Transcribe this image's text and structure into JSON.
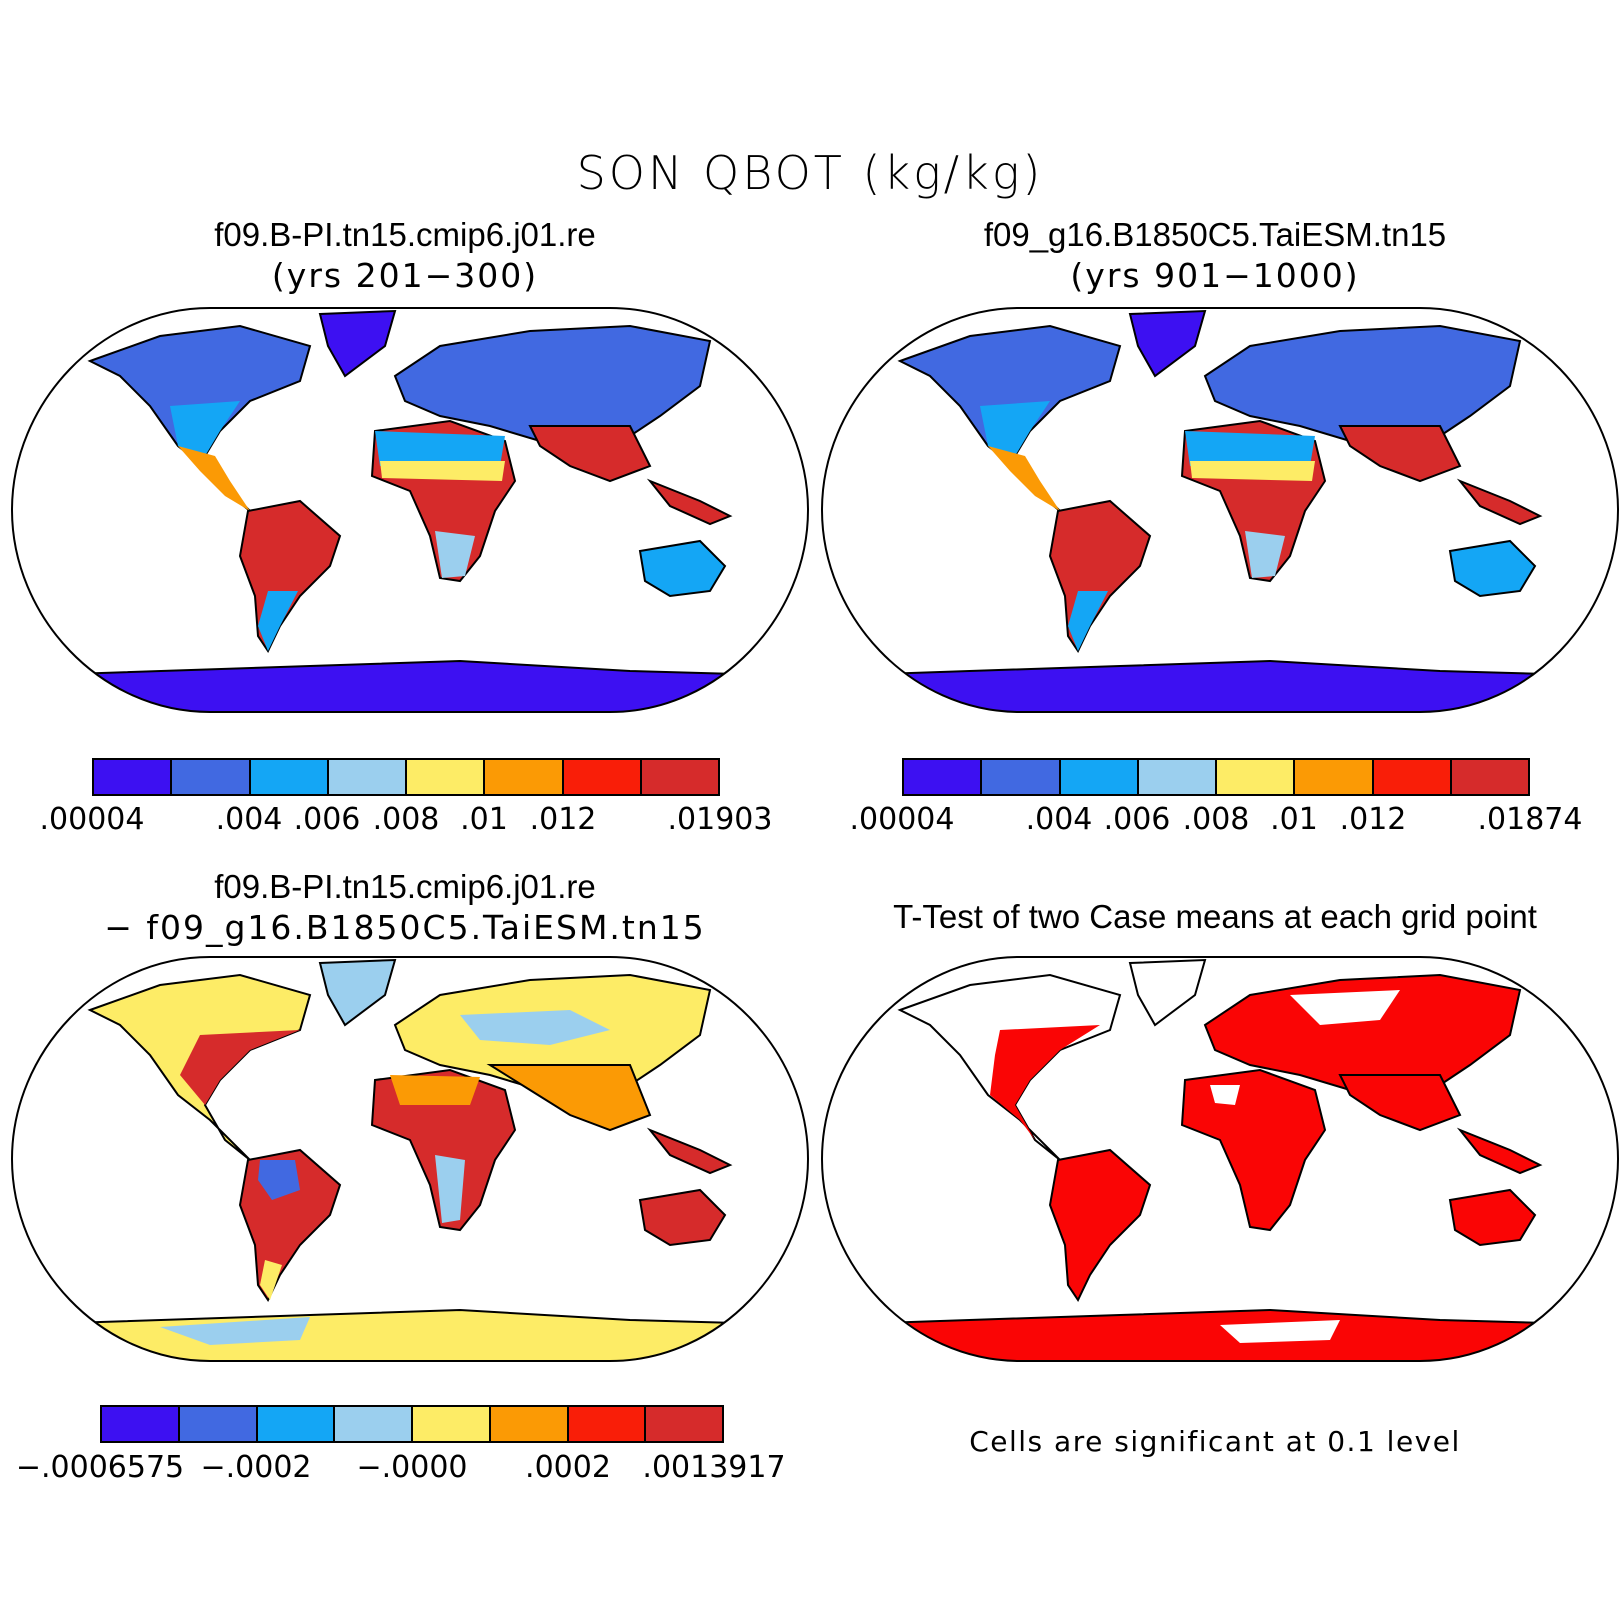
{
  "title": "SON QBOT (kg/kg)",
  "colors": {
    "c1": "#3d10f2",
    "c2": "#4169e1",
    "c3": "#14a6f5",
    "c4": "#9bcfee",
    "c5": "#fdec66",
    "c6": "#fb9a05",
    "c7": "#f91e08",
    "c8": "#d62b2b",
    "sig": "#fa0505"
  },
  "panels": {
    "top_left": {
      "title": "f09.B-PI.tn15.cmip6.j01.re",
      "subtitle": "(yrs 201−300)"
    },
    "top_right": {
      "title": "f09_g16.B1850C5.TaiESM.tn15",
      "subtitle": "(yrs 901−1000)"
    },
    "bottom_left": {
      "title": "f09.B-PI.tn15.cmip6.j01.re",
      "subtitle": "− f09_g16.B1850C5.TaiESM.tn15"
    },
    "bottom_right": {
      "title": "T-Test of two Case means at each grid point",
      "note": "Cells are significant at 0.1 level"
    }
  },
  "legends": {
    "top_left": {
      "ticks": [
        ".00004",
        ".004",
        ".006",
        ".008",
        ".01",
        ".012",
        ".01903"
      ]
    },
    "top_right": {
      "ticks": [
        ".00004",
        ".004",
        ".006",
        ".008",
        ".01",
        ".012",
        ".01874"
      ]
    },
    "bottom_left": {
      "ticks": [
        "−.0006575",
        "−.0002",
        "−.0000",
        ".0002",
        ".0013917"
      ]
    }
  }
}
